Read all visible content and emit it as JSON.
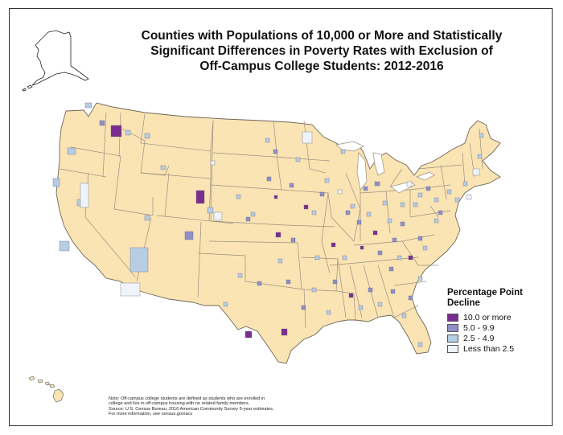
{
  "title_lines": [
    "Counties with Populations of 10,000 or More and Statistically",
    "Significant Differences in Poverty Rates with Exclusion of",
    "Off-Campus College Students: 2012-2016"
  ],
  "legend": {
    "title_lines": [
      "Percentage Point",
      "Decline"
    ],
    "items": [
      {
        "label": "10.0 or more",
        "color": "#7b2d8e"
      },
      {
        "label": "5.0 - 9.9",
        "color": "#8e8fc6"
      },
      {
        "label": "2.5 - 4.9",
        "color": "#b6cde3"
      },
      {
        "label": "Less than 2.5",
        "color": "#eef4fa"
      }
    ]
  },
  "note_lines": [
    "Note: Off-campus college students are defined as students who are enrolled in",
    "college and live in off-campus housing with no related family members.",
    "Source: U.S. Census Bureau, 2016 American Community Survey 5-year estimates.",
    "For more information, see census.gov/acs"
  ],
  "colors": {
    "land": "#fae4b4",
    "boundary": "#9a8f80",
    "frame": "#2f2f2f"
  },
  "map_layers": [
    "alaska-inset",
    "hawaii-inset",
    "contiguous-us-states"
  ]
}
